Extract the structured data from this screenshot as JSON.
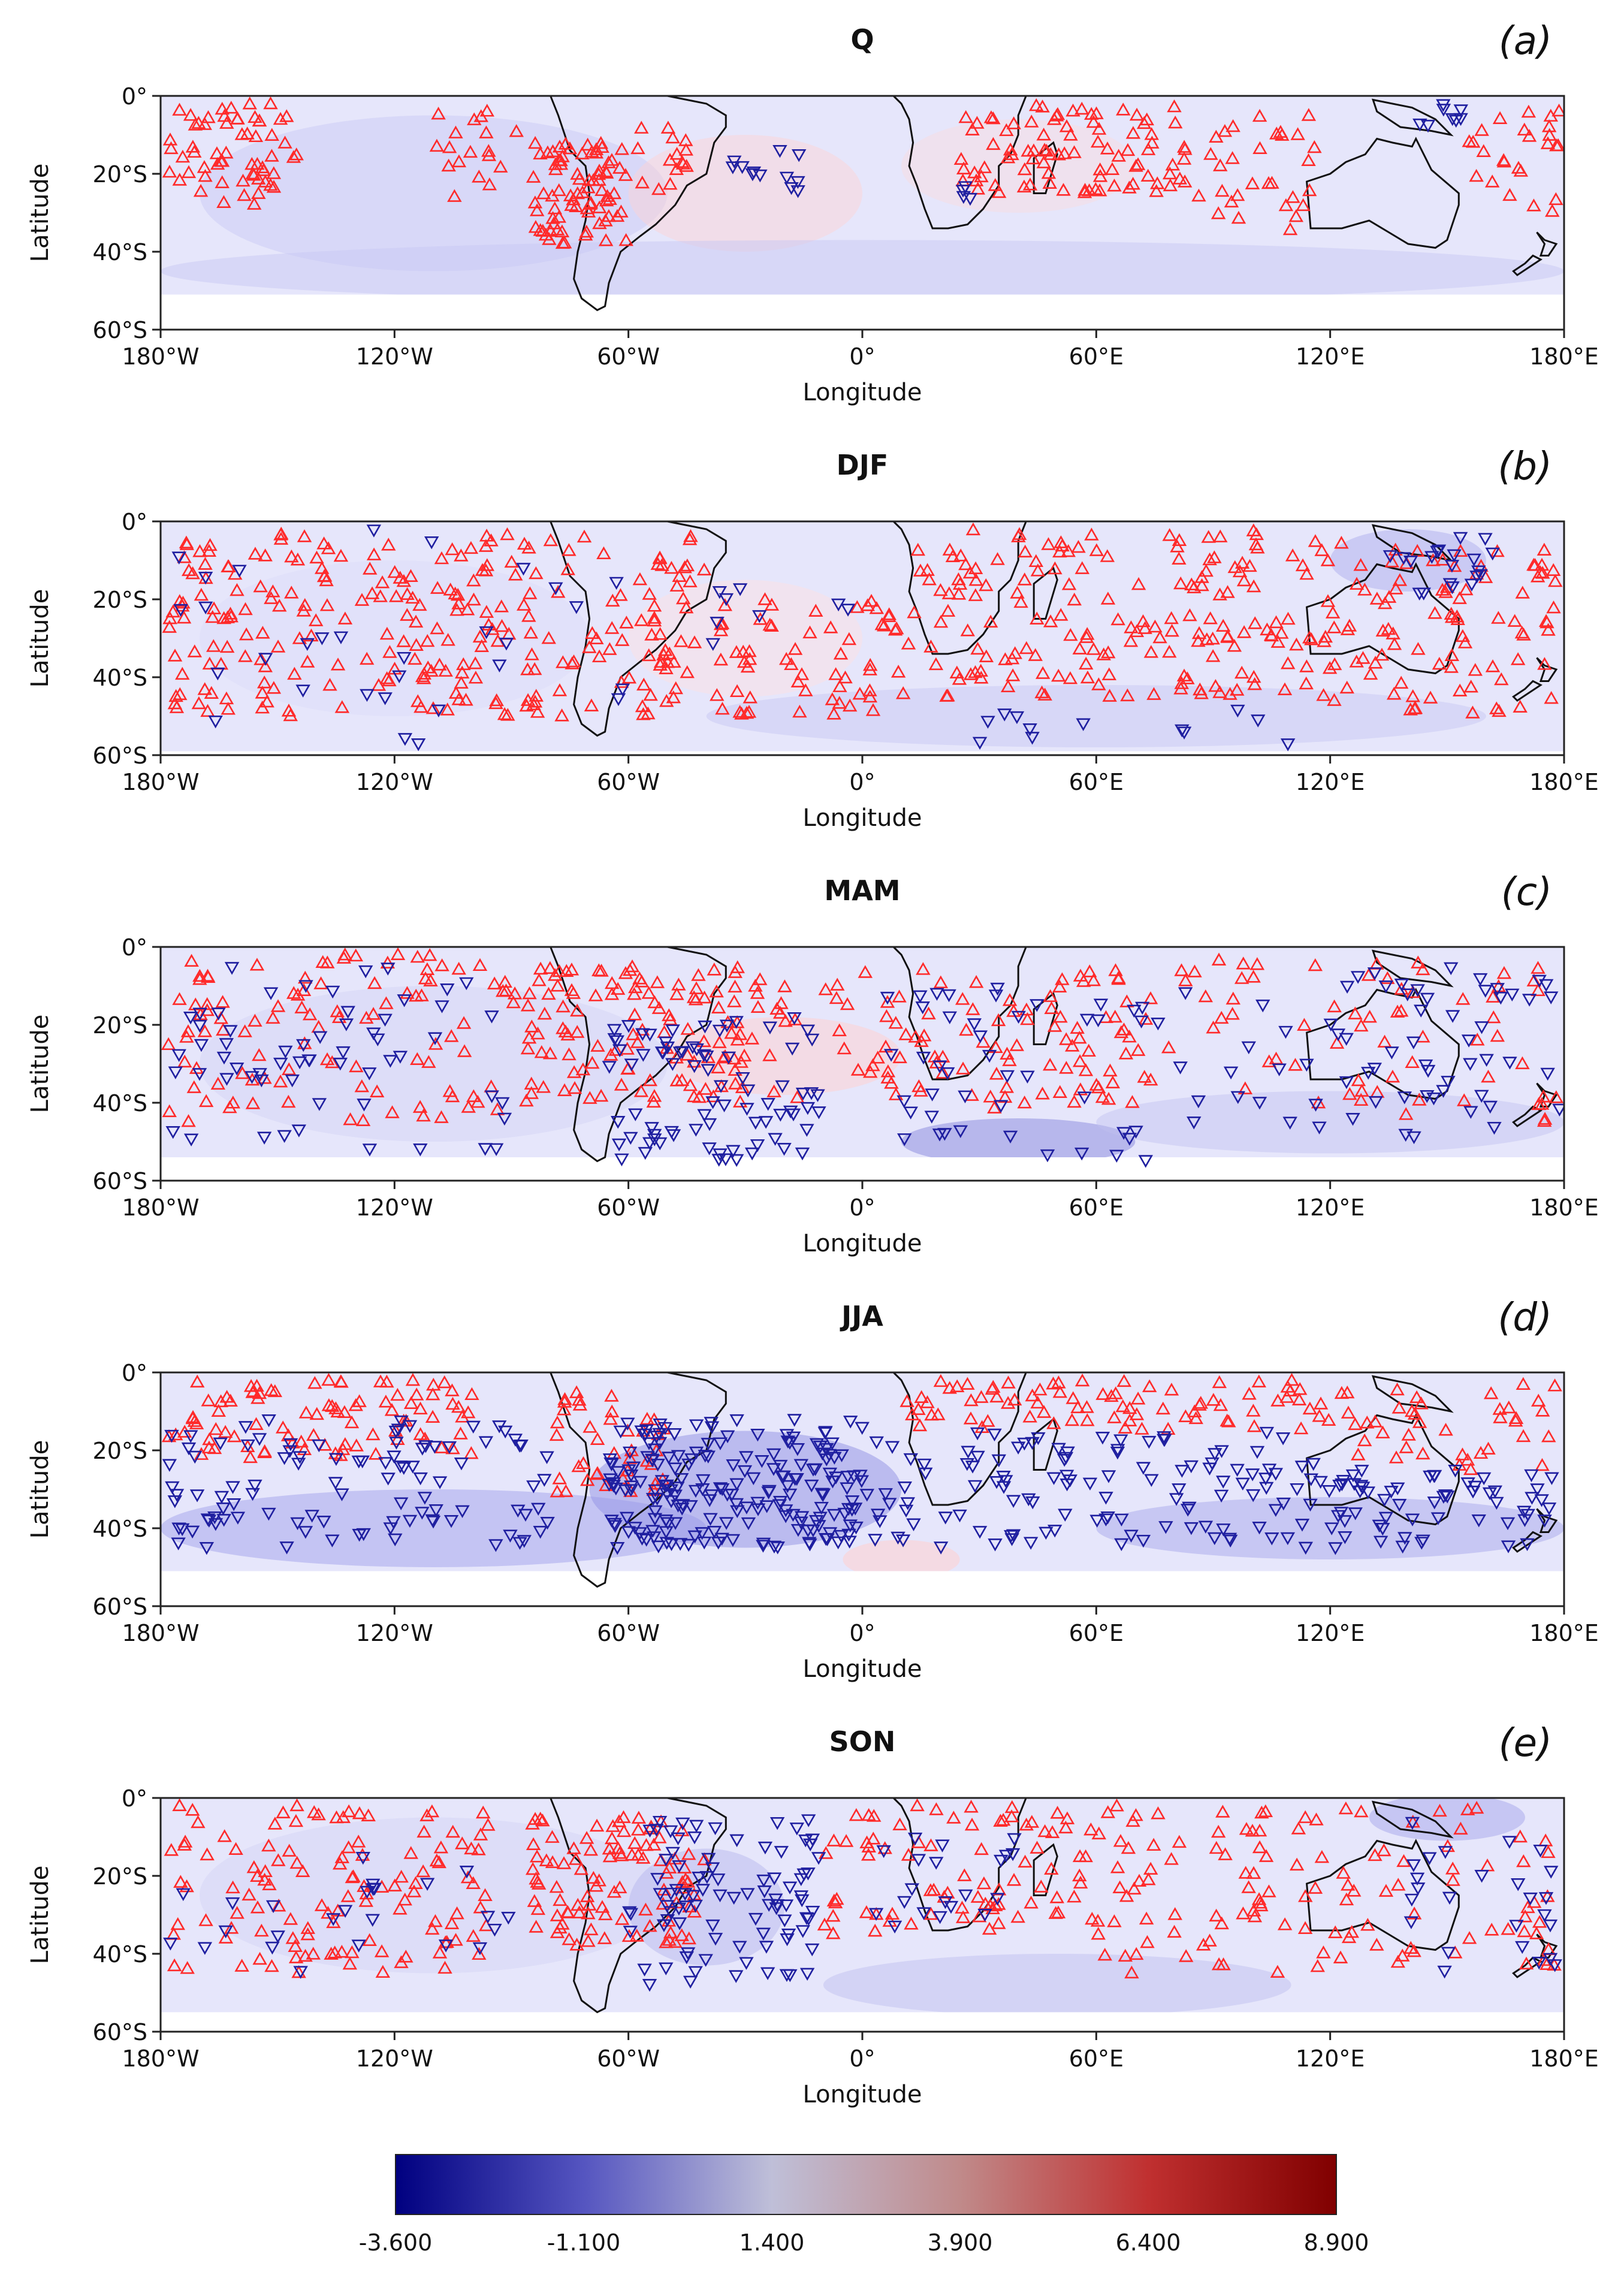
{
  "chart_data": [
    {
      "type": "scatter",
      "panel_label": "(a)",
      "title": "Q",
      "xlabel": "Longitude",
      "ylabel": "Latitude",
      "xlim": [
        -180,
        180
      ],
      "ylim": [
        -60,
        0
      ],
      "data_extent_south": -51,
      "xticks": [
        "180°W",
        "120°W",
        "60°W",
        "0°",
        "60°E",
        "120°E",
        "180°E"
      ],
      "yticks": [
        "0°",
        "20°S",
        "40°S",
        "60°S"
      ],
      "series": [
        {
          "name": "positive",
          "marker": "triangle-up",
          "color": "#ff2a2a",
          "regions": [
            [
              -178,
              -145,
              -28,
              -2,
              60
            ],
            [
              -112,
              -88,
              -26,
              -2,
              18
            ],
            [
              -85,
              -60,
              -38,
              -12,
              80
            ],
            [
              -58,
              -45,
              -25,
              -8,
              15
            ],
            [
              25,
              85,
              -25,
              -2,
              90
            ],
            [
              86,
              118,
              -35,
              -5,
              30
            ],
            [
              152,
              179,
              -30,
              -3,
              25
            ]
          ]
        },
        {
          "name": "negative",
          "marker": "triangle-down",
          "color": "#1f1fa0",
          "regions": [
            [
              -35,
              -15,
              -25,
              -12,
              12
            ],
            [
              142,
              155,
              -8,
              -2,
              8
            ],
            [
              22,
              28,
              -28,
              -20,
              4
            ]
          ]
        }
      ]
    },
    {
      "type": "scatter",
      "panel_label": "(b)",
      "title": "DJF",
      "xlabel": "Longitude",
      "ylabel": "Latitude",
      "xlim": [
        -180,
        180
      ],
      "ylim": [
        -60,
        0
      ],
      "data_extent_south": -59,
      "xticks": [
        "180°W",
        "120°W",
        "60°W",
        "0°",
        "60°E",
        "120°E",
        "180°E"
      ],
      "yticks": [
        "0°",
        "20°S",
        "40°S",
        "60°S"
      ],
      "series": [
        {
          "name": "positive",
          "marker": "triangle-up",
          "color": "#ff2a2a",
          "regions": [
            [
              -178,
              -40,
              -50,
              -2,
              260
            ],
            [
              -38,
              10,
              -50,
              -20,
              60
            ],
            [
              10,
              120,
              -45,
              -2,
              180
            ],
            [
              120,
              179,
              -50,
              -5,
              90
            ]
          ]
        },
        {
          "name": "negative",
          "marker": "triangle-down",
          "color": "#1f1fa0",
          "regions": [
            [
              -178,
              -60,
              -58,
              -2,
              30
            ],
            [
              -40,
              0,
              -35,
              -15,
              8
            ],
            [
              30,
              110,
              -58,
              -48,
              12
            ],
            [
              135,
              165,
              -20,
              -2,
              20
            ]
          ]
        }
      ]
    },
    {
      "type": "scatter",
      "panel_label": "(c)",
      "title": "MAM",
      "xlabel": "Longitude",
      "ylabel": "Latitude",
      "xlim": [
        -180,
        180
      ],
      "ylim": [
        -60,
        0
      ],
      "data_extent_south": -54,
      "xticks": [
        "180°W",
        "120°W",
        "60°W",
        "0°",
        "60°E",
        "120°E",
        "180°E"
      ],
      "yticks": [
        "0°",
        "20°S",
        "40°S",
        "60°S"
      ],
      "series": [
        {
          "name": "positive",
          "marker": "triangle-up",
          "color": "#ff2a2a",
          "regions": [
            [
              -178,
              -90,
              -45,
              -2,
              100
            ],
            [
              -90,
              -30,
              -40,
              -5,
              120
            ],
            [
              -30,
              70,
              -42,
              -5,
              110
            ],
            [
              70,
              178,
              -45,
              -3,
              70
            ]
          ]
        },
        {
          "name": "negative",
          "marker": "triangle-down",
          "color": "#1f1fa0",
          "regions": [
            [
              -178,
              -90,
              -52,
              -5,
              60
            ],
            [
              -65,
              -10,
              -55,
              -18,
              80
            ],
            [
              0,
              120,
              -55,
              -10,
              60
            ],
            [
              120,
              179,
              -50,
              -5,
              50
            ]
          ]
        }
      ]
    },
    {
      "type": "scatter",
      "panel_label": "(d)",
      "title": "JJA",
      "xlabel": "Longitude",
      "ylabel": "Latitude",
      "xlim": [
        -180,
        180
      ],
      "ylim": [
        -60,
        0
      ],
      "data_extent_south": -51,
      "xticks": [
        "180°W",
        "120°W",
        "60°W",
        "0°",
        "60°E",
        "120°E",
        "180°E"
      ],
      "yticks": [
        "0°",
        "20°S",
        "40°S",
        "60°S"
      ],
      "series": [
        {
          "name": "positive",
          "marker": "triangle-up",
          "color": "#ff2a2a",
          "regions": [
            [
              -178,
              -100,
              -22,
              -2,
              90
            ],
            [
              -80,
              -50,
              -32,
              -5,
              40
            ],
            [
              10,
              120,
              -15,
              -2,
              80
            ],
            [
              120,
              179,
              -25,
              -2,
              40
            ]
          ]
        },
        {
          "name": "negative",
          "marker": "triangle-down",
          "color": "#1f1fa0",
          "regions": [
            [
              -178,
              -80,
              -45,
              -12,
              100
            ],
            [
              -65,
              0,
              -45,
              -12,
              200
            ],
            [
              0,
              120,
              -45,
              -15,
              120
            ],
            [
              120,
              179,
              -45,
              -25,
              60
            ]
          ]
        }
      ]
    },
    {
      "type": "scatter",
      "panel_label": "(e)",
      "title": "SON",
      "xlabel": "Longitude",
      "ylabel": "Latitude",
      "xlim": [
        -180,
        180
      ],
      "ylim": [
        -60,
        0
      ],
      "data_extent_south": -55,
      "xticks": [
        "180°W",
        "120°W",
        "60°W",
        "0°",
        "60°E",
        "120°E",
        "180°E"
      ],
      "yticks": [
        "0°",
        "20°S",
        "40°S",
        "60°S"
      ],
      "series": [
        {
          "name": "positive",
          "marker": "triangle-up",
          "color": "#ff2a2a",
          "regions": [
            [
              -178,
              -95,
              -45,
              -2,
              120
            ],
            [
              -85,
              -40,
              -38,
              -5,
              100
            ],
            [
              -10,
              60,
              -35,
              -2,
              80
            ],
            [
              60,
              178,
              -45,
              -2,
              120
            ]
          ]
        },
        {
          "name": "negative",
          "marker": "triangle-down",
          "color": "#1f1fa0",
          "regions": [
            [
              -178,
              -90,
              -45,
              -15,
              25
            ],
            [
              -60,
              -10,
              -48,
              -5,
              90
            ],
            [
              0,
              40,
              -35,
              -10,
              20
            ],
            [
              140,
              178,
              -45,
              -2,
              25
            ]
          ]
        }
      ]
    }
  ],
  "colorbar": {
    "min": -3.6,
    "max": 8.9,
    "ticks": [
      "-3.600",
      "-1.100",
      "1.400",
      "3.900",
      "6.400",
      "8.900"
    ],
    "colors": [
      "#000080",
      "#5555c0",
      "#bfbfd8",
      "#c08a8a",
      "#c03030",
      "#800000"
    ]
  }
}
